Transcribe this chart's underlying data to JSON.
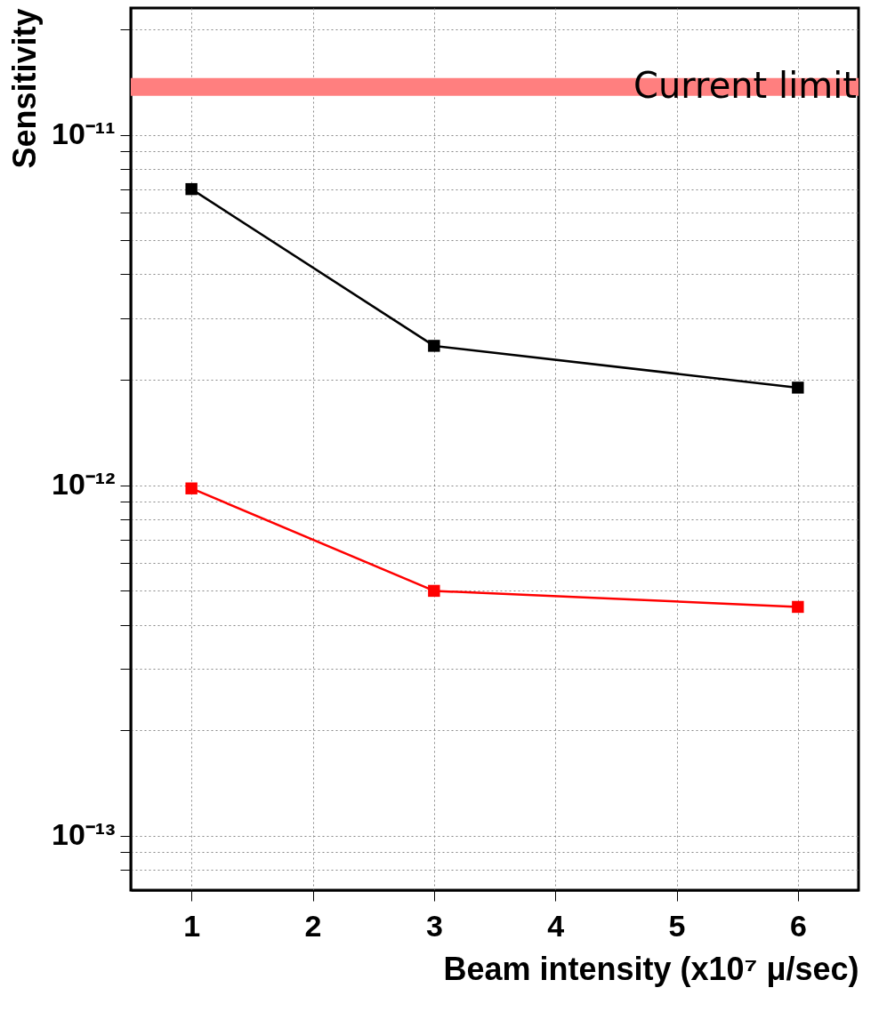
{
  "chart_data": {
    "type": "line",
    "xlabel": "Beam intensity (x10⁷ μ/sec)",
    "ylabel": "Sensitivity",
    "log": "y",
    "grid": true,
    "marker": "square",
    "line_style": "solid",
    "x": [
      1,
      3,
      6
    ],
    "series": [
      {
        "color": "#000000",
        "values": [
          7e-12,
          2.5e-12,
          1.9e-12
        ]
      },
      {
        "color": "#ff0000",
        "values": [
          9.8e-13,
          5e-13,
          4.5e-13
        ]
      }
    ],
    "xlim": [
      0.5,
      6.5
    ],
    "xticks": [
      1,
      2,
      3,
      4,
      5,
      6
    ],
    "ylim": [
      7e-14,
      2.3e-11
    ],
    "yticks": [
      {
        "value": 8e-14,
        "label": null
      },
      {
        "value": 9e-14,
        "label": null
      },
      {
        "value": 1e-13,
        "label": "10⁻¹³"
      },
      {
        "value": 2e-13,
        "label": null
      },
      {
        "value": 3e-13,
        "label": null
      },
      {
        "value": 4e-13,
        "label": null
      },
      {
        "value": 5e-13,
        "label": null
      },
      {
        "value": 6e-13,
        "label": null
      },
      {
        "value": 7e-13,
        "label": null
      },
      {
        "value": 8e-13,
        "label": null
      },
      {
        "value": 9e-13,
        "label": null
      },
      {
        "value": 1e-12,
        "label": "10⁻¹²"
      },
      {
        "value": 2e-12,
        "label": null
      },
      {
        "value": 3e-12,
        "label": null
      },
      {
        "value": 4e-12,
        "label": null
      },
      {
        "value": 5e-12,
        "label": null
      },
      {
        "value": 6e-12,
        "label": null
      },
      {
        "value": 7e-12,
        "label": null
      },
      {
        "value": 8e-12,
        "label": null
      },
      {
        "value": 9e-12,
        "label": null
      },
      {
        "value": 1e-11,
        "label": "10⁻¹¹"
      },
      {
        "value": 2e-11,
        "label": null
      }
    ],
    "ref_lines": [
      {
        "axis": "y",
        "value": 1.37e-11,
        "label": "Current limit",
        "color": "#ff7f7f"
      }
    ]
  }
}
